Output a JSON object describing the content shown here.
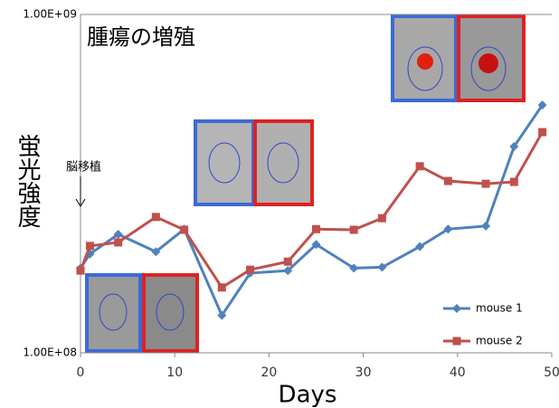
{
  "chart_data": {
    "type": "line",
    "title": "腫瘍の増殖",
    "annotation": "脳移植",
    "x_label": "Days",
    "y_label": "蛍光強度",
    "x": [
      0,
      1,
      4,
      8,
      11,
      15,
      18,
      22,
      25,
      29,
      32,
      36,
      39,
      43,
      46,
      49
    ],
    "series": [
      {
        "name": "mouse 1",
        "color": "#4f81bd",
        "marker": "diamond",
        "values": [
          178000000,
          196000000,
          224000000,
          199000000,
          232000000,
          129000000,
          172000000,
          175000000,
          209000000,
          178000000,
          179000000,
          206000000,
          232000000,
          237000000,
          407000000,
          540000000
        ]
      },
      {
        "name": "mouse 2",
        "color": "#c0504d",
        "marker": "square",
        "values": [
          175000000,
          207000000,
          212000000,
          252000000,
          231000000,
          156000000,
          176000000,
          186000000,
          232000000,
          231000000,
          250000000,
          356000000,
          322000000,
          316000000,
          320000000,
          449000000
        ]
      }
    ],
    "xlim": [
      0,
      50
    ],
    "xticks": [
      0,
      10,
      20,
      30,
      40,
      50
    ],
    "ylim": [
      100000000,
      1000000000
    ],
    "yscale": "log",
    "yticks": [
      {
        "value": 100000000,
        "label": "1.00E+08"
      },
      {
        "value": 1000000000,
        "label": "1.00E+09"
      }
    ]
  }
}
